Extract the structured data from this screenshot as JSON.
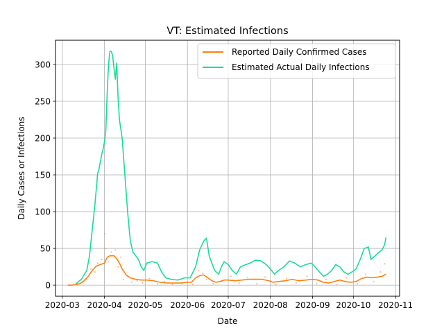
{
  "chart_data": {
    "type": "line",
    "title": "VT: Estimated Infections",
    "xlabel": "Date",
    "ylabel": "Daily Cases or Infections",
    "xlim": [
      "2020-02-25",
      "2020-11-04"
    ],
    "ylim": [
      -15,
      333
    ],
    "x_ticks": [
      "2020-03-01",
      "2020-04-01",
      "2020-05-01",
      "2020-06-01",
      "2020-07-01",
      "2020-08-01",
      "2020-09-01",
      "2020-10-01",
      "2020-11-01"
    ],
    "x_tick_labels": [
      "2020-03",
      "2020-04",
      "2020-05",
      "2020-06",
      "2020-07",
      "2020-08",
      "2020-09",
      "2020-10",
      "2020-11"
    ],
    "y_ticks": [
      0,
      50,
      100,
      150,
      200,
      250,
      300
    ],
    "y_tick_labels": [
      "0",
      "50",
      "100",
      "150",
      "200",
      "250",
      "300"
    ],
    "grid": true,
    "legend_position": "top-right",
    "series": [
      {
        "name": "Reported Daily Confirmed Cases",
        "color": "#ff7f0e",
        "points": [
          [
            "2020-03-05",
            0
          ],
          [
            "2020-03-08",
            0
          ],
          [
            "2020-03-11",
            1
          ],
          [
            "2020-03-14",
            2
          ],
          [
            "2020-03-17",
            6
          ],
          [
            "2020-03-20",
            12
          ],
          [
            "2020-03-23",
            20
          ],
          [
            "2020-03-26",
            26
          ],
          [
            "2020-03-29",
            28
          ],
          [
            "2020-04-01",
            30
          ],
          [
            "2020-04-03",
            38
          ],
          [
            "2020-04-05",
            40
          ],
          [
            "2020-04-08",
            40
          ],
          [
            "2020-04-10",
            36
          ],
          [
            "2020-04-12",
            30
          ],
          [
            "2020-04-14",
            22
          ],
          [
            "2020-04-17",
            14
          ],
          [
            "2020-04-20",
            10
          ],
          [
            "2020-04-24",
            8
          ],
          [
            "2020-04-28",
            7
          ],
          [
            "2020-05-02",
            7
          ],
          [
            "2020-05-07",
            6
          ],
          [
            "2020-05-12",
            4
          ],
          [
            "2020-05-17",
            3
          ],
          [
            "2020-05-22",
            3
          ],
          [
            "2020-05-27",
            3
          ],
          [
            "2020-06-01",
            4
          ],
          [
            "2020-06-04",
            4
          ],
          [
            "2020-06-07",
            10
          ],
          [
            "2020-06-10",
            13
          ],
          [
            "2020-06-13",
            14
          ],
          [
            "2020-06-16",
            10
          ],
          [
            "2020-06-19",
            6
          ],
          [
            "2020-06-22",
            4
          ],
          [
            "2020-06-25",
            5
          ],
          [
            "2020-06-28",
            7
          ],
          [
            "2020-07-01",
            7
          ],
          [
            "2020-07-06",
            6
          ],
          [
            "2020-07-11",
            7
          ],
          [
            "2020-07-16",
            8
          ],
          [
            "2020-07-21",
            8
          ],
          [
            "2020-07-26",
            8
          ],
          [
            "2020-07-31",
            6
          ],
          [
            "2020-08-03",
            4
          ],
          [
            "2020-08-07",
            5
          ],
          [
            "2020-08-12",
            6
          ],
          [
            "2020-08-17",
            8
          ],
          [
            "2020-08-22",
            6
          ],
          [
            "2020-08-27",
            7
          ],
          [
            "2020-09-01",
            8
          ],
          [
            "2020-09-05",
            7
          ],
          [
            "2020-09-09",
            4
          ],
          [
            "2020-09-13",
            3
          ],
          [
            "2020-09-17",
            5
          ],
          [
            "2020-09-21",
            7
          ],
          [
            "2020-09-25",
            5
          ],
          [
            "2020-09-29",
            4
          ],
          [
            "2020-10-03",
            5
          ],
          [
            "2020-10-07",
            9
          ],
          [
            "2020-10-11",
            11
          ],
          [
            "2020-10-15",
            10
          ],
          [
            "2020-10-19",
            11
          ],
          [
            "2020-10-22",
            12
          ],
          [
            "2020-10-25",
            15
          ]
        ]
      },
      {
        "name": "Estimated Actual Daily Infections",
        "color": "#17de94",
        "points": [
          [
            "2020-03-11",
            2
          ],
          [
            "2020-03-13",
            5
          ],
          [
            "2020-03-15",
            8
          ],
          [
            "2020-03-17",
            14
          ],
          [
            "2020-03-19",
            20
          ],
          [
            "2020-03-21",
            40
          ],
          [
            "2020-03-23",
            75
          ],
          [
            "2020-03-25",
            110
          ],
          [
            "2020-03-27",
            152
          ],
          [
            "2020-03-28",
            158
          ],
          [
            "2020-03-30",
            178
          ],
          [
            "2020-03-31",
            185
          ],
          [
            "2020-04-01",
            195
          ],
          [
            "2020-04-02",
            210
          ],
          [
            "2020-04-03",
            262
          ],
          [
            "2020-04-04",
            300
          ],
          [
            "2020-04-05",
            318
          ],
          [
            "2020-04-06",
            318
          ],
          [
            "2020-04-07",
            312
          ],
          [
            "2020-04-08",
            295
          ],
          [
            "2020-04-09",
            280
          ],
          [
            "2020-04-10",
            302
          ],
          [
            "2020-04-11",
            255
          ],
          [
            "2020-04-12",
            225
          ],
          [
            "2020-04-14",
            200
          ],
          [
            "2020-04-16",
            150
          ],
          [
            "2020-04-18",
            100
          ],
          [
            "2020-04-20",
            60
          ],
          [
            "2020-04-22",
            45
          ],
          [
            "2020-04-24",
            40
          ],
          [
            "2020-04-26",
            35
          ],
          [
            "2020-04-28",
            25
          ],
          [
            "2020-04-30",
            20
          ],
          [
            "2020-05-02",
            30
          ],
          [
            "2020-05-06",
            32
          ],
          [
            "2020-05-10",
            30
          ],
          [
            "2020-05-13",
            18
          ],
          [
            "2020-05-16",
            10
          ],
          [
            "2020-05-20",
            8
          ],
          [
            "2020-05-25",
            7
          ],
          [
            "2020-05-30",
            10
          ],
          [
            "2020-06-03",
            10
          ],
          [
            "2020-06-07",
            25
          ],
          [
            "2020-06-10",
            48
          ],
          [
            "2020-06-13",
            60
          ],
          [
            "2020-06-15",
            64
          ],
          [
            "2020-06-17",
            40
          ],
          [
            "2020-06-19",
            30
          ],
          [
            "2020-06-21",
            20
          ],
          [
            "2020-06-24",
            15
          ],
          [
            "2020-06-26",
            25
          ],
          [
            "2020-06-28",
            32
          ],
          [
            "2020-07-01",
            28
          ],
          [
            "2020-07-04",
            20
          ],
          [
            "2020-07-07",
            15
          ],
          [
            "2020-07-10",
            25
          ],
          [
            "2020-07-14",
            28
          ],
          [
            "2020-07-17",
            30
          ],
          [
            "2020-07-21",
            34
          ],
          [
            "2020-07-25",
            33
          ],
          [
            "2020-07-29",
            28
          ],
          [
            "2020-08-01",
            22
          ],
          [
            "2020-08-04",
            15
          ],
          [
            "2020-08-07",
            20
          ],
          [
            "2020-08-11",
            25
          ],
          [
            "2020-08-15",
            33
          ],
          [
            "2020-08-19",
            30
          ],
          [
            "2020-08-23",
            25
          ],
          [
            "2020-08-27",
            28
          ],
          [
            "2020-08-31",
            30
          ],
          [
            "2020-09-03",
            25
          ],
          [
            "2020-09-06",
            18
          ],
          [
            "2020-09-09",
            12
          ],
          [
            "2020-09-12",
            15
          ],
          [
            "2020-09-15",
            20
          ],
          [
            "2020-09-18",
            28
          ],
          [
            "2020-09-21",
            25
          ],
          [
            "2020-09-24",
            18
          ],
          [
            "2020-09-27",
            15
          ],
          [
            "2020-09-30",
            18
          ],
          [
            "2020-10-03",
            22
          ],
          [
            "2020-10-06",
            35
          ],
          [
            "2020-10-09",
            50
          ],
          [
            "2020-10-12",
            52
          ],
          [
            "2020-10-14",
            35
          ],
          [
            "2020-10-17",
            40
          ],
          [
            "2020-10-20",
            45
          ],
          [
            "2020-10-22",
            48
          ],
          [
            "2020-10-24",
            55
          ],
          [
            "2020-10-25",
            65
          ]
        ]
      },
      {
        "name": "",
        "color": "#ff7f0e",
        "style": "scatter",
        "points": [
          [
            "2020-03-06",
            0
          ],
          [
            "2020-03-12",
            2
          ],
          [
            "2020-03-16",
            4
          ],
          [
            "2020-03-19",
            8
          ],
          [
            "2020-03-22",
            22
          ],
          [
            "2020-03-25",
            18
          ],
          [
            "2020-03-27",
            30
          ],
          [
            "2020-03-30",
            35
          ],
          [
            "2020-04-01",
            70
          ],
          [
            "2020-04-02",
            50
          ],
          [
            "2020-04-04",
            32
          ],
          [
            "2020-04-06",
            45
          ],
          [
            "2020-04-09",
            48
          ],
          [
            "2020-04-11",
            25
          ],
          [
            "2020-04-13",
            38
          ],
          [
            "2020-04-15",
            8
          ],
          [
            "2020-04-18",
            12
          ],
          [
            "2020-04-21",
            4
          ],
          [
            "2020-04-25",
            6
          ],
          [
            "2020-04-29",
            3
          ],
          [
            "2020-05-04",
            9
          ],
          [
            "2020-05-10",
            2
          ],
          [
            "2020-05-15",
            5
          ],
          [
            "2020-05-21",
            1
          ],
          [
            "2020-05-28",
            2
          ],
          [
            "2020-06-05",
            1
          ],
          [
            "2020-06-09",
            20
          ],
          [
            "2020-06-12",
            16
          ],
          [
            "2020-06-15",
            8
          ],
          [
            "2020-06-20",
            2
          ],
          [
            "2020-06-26",
            5
          ],
          [
            "2020-07-03",
            12
          ],
          [
            "2020-07-09",
            3
          ],
          [
            "2020-07-15",
            10
          ],
          [
            "2020-07-22",
            2
          ],
          [
            "2020-07-28",
            11
          ],
          [
            "2020-08-05",
            1
          ],
          [
            "2020-08-13",
            9
          ],
          [
            "2020-08-20",
            3
          ],
          [
            "2020-08-28",
            12
          ],
          [
            "2020-09-04",
            2
          ],
          [
            "2020-09-11",
            8
          ],
          [
            "2020-09-19",
            1
          ],
          [
            "2020-09-26",
            10
          ],
          [
            "2020-10-04",
            2
          ],
          [
            "2020-10-10",
            15
          ],
          [
            "2020-10-16",
            5
          ],
          [
            "2020-10-21",
            18
          ],
          [
            "2020-10-24",
            29
          ]
        ]
      }
    ]
  }
}
